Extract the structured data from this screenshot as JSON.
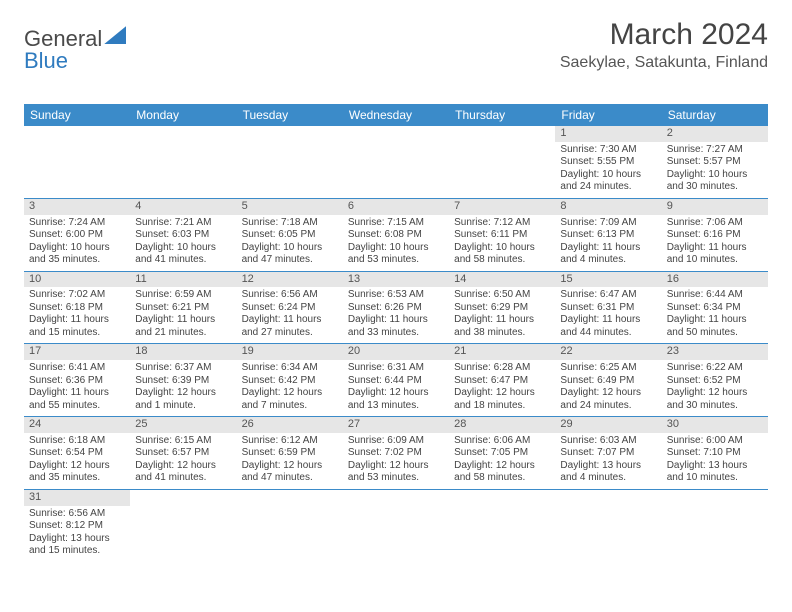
{
  "logo": {
    "part1": "General",
    "part2": "Blue"
  },
  "title": "March 2024",
  "location": "Saekylae, Satakunta, Finland",
  "weekdays": [
    "Sunday",
    "Monday",
    "Tuesday",
    "Wednesday",
    "Thursday",
    "Friday",
    "Saturday"
  ],
  "colors": {
    "header_bg": "#3b8bc9",
    "header_text": "#ffffff",
    "daynum_bg": "#e6e6e6",
    "border": "#3b8bc9",
    "text": "#444444",
    "logo_blue": "#2f7bbf"
  },
  "weeks": [
    [
      {
        "n": "",
        "lines": []
      },
      {
        "n": "",
        "lines": []
      },
      {
        "n": "",
        "lines": []
      },
      {
        "n": "",
        "lines": []
      },
      {
        "n": "",
        "lines": []
      },
      {
        "n": "1",
        "lines": [
          "Sunrise: 7:30 AM",
          "Sunset: 5:55 PM",
          "Daylight: 10 hours",
          "and 24 minutes."
        ]
      },
      {
        "n": "2",
        "lines": [
          "Sunrise: 7:27 AM",
          "Sunset: 5:57 PM",
          "Daylight: 10 hours",
          "and 30 minutes."
        ]
      }
    ],
    [
      {
        "n": "3",
        "lines": [
          "Sunrise: 7:24 AM",
          "Sunset: 6:00 PM",
          "Daylight: 10 hours",
          "and 35 minutes."
        ]
      },
      {
        "n": "4",
        "lines": [
          "Sunrise: 7:21 AM",
          "Sunset: 6:03 PM",
          "Daylight: 10 hours",
          "and 41 minutes."
        ]
      },
      {
        "n": "5",
        "lines": [
          "Sunrise: 7:18 AM",
          "Sunset: 6:05 PM",
          "Daylight: 10 hours",
          "and 47 minutes."
        ]
      },
      {
        "n": "6",
        "lines": [
          "Sunrise: 7:15 AM",
          "Sunset: 6:08 PM",
          "Daylight: 10 hours",
          "and 53 minutes."
        ]
      },
      {
        "n": "7",
        "lines": [
          "Sunrise: 7:12 AM",
          "Sunset: 6:11 PM",
          "Daylight: 10 hours",
          "and 58 minutes."
        ]
      },
      {
        "n": "8",
        "lines": [
          "Sunrise: 7:09 AM",
          "Sunset: 6:13 PM",
          "Daylight: 11 hours",
          "and 4 minutes."
        ]
      },
      {
        "n": "9",
        "lines": [
          "Sunrise: 7:06 AM",
          "Sunset: 6:16 PM",
          "Daylight: 11 hours",
          "and 10 minutes."
        ]
      }
    ],
    [
      {
        "n": "10",
        "lines": [
          "Sunrise: 7:02 AM",
          "Sunset: 6:18 PM",
          "Daylight: 11 hours",
          "and 15 minutes."
        ]
      },
      {
        "n": "11",
        "lines": [
          "Sunrise: 6:59 AM",
          "Sunset: 6:21 PM",
          "Daylight: 11 hours",
          "and 21 minutes."
        ]
      },
      {
        "n": "12",
        "lines": [
          "Sunrise: 6:56 AM",
          "Sunset: 6:24 PM",
          "Daylight: 11 hours",
          "and 27 minutes."
        ]
      },
      {
        "n": "13",
        "lines": [
          "Sunrise: 6:53 AM",
          "Sunset: 6:26 PM",
          "Daylight: 11 hours",
          "and 33 minutes."
        ]
      },
      {
        "n": "14",
        "lines": [
          "Sunrise: 6:50 AM",
          "Sunset: 6:29 PM",
          "Daylight: 11 hours",
          "and 38 minutes."
        ]
      },
      {
        "n": "15",
        "lines": [
          "Sunrise: 6:47 AM",
          "Sunset: 6:31 PM",
          "Daylight: 11 hours",
          "and 44 minutes."
        ]
      },
      {
        "n": "16",
        "lines": [
          "Sunrise: 6:44 AM",
          "Sunset: 6:34 PM",
          "Daylight: 11 hours",
          "and 50 minutes."
        ]
      }
    ],
    [
      {
        "n": "17",
        "lines": [
          "Sunrise: 6:41 AM",
          "Sunset: 6:36 PM",
          "Daylight: 11 hours",
          "and 55 minutes."
        ]
      },
      {
        "n": "18",
        "lines": [
          "Sunrise: 6:37 AM",
          "Sunset: 6:39 PM",
          "Daylight: 12 hours",
          "and 1 minute."
        ]
      },
      {
        "n": "19",
        "lines": [
          "Sunrise: 6:34 AM",
          "Sunset: 6:42 PM",
          "Daylight: 12 hours",
          "and 7 minutes."
        ]
      },
      {
        "n": "20",
        "lines": [
          "Sunrise: 6:31 AM",
          "Sunset: 6:44 PM",
          "Daylight: 12 hours",
          "and 13 minutes."
        ]
      },
      {
        "n": "21",
        "lines": [
          "Sunrise: 6:28 AM",
          "Sunset: 6:47 PM",
          "Daylight: 12 hours",
          "and 18 minutes."
        ]
      },
      {
        "n": "22",
        "lines": [
          "Sunrise: 6:25 AM",
          "Sunset: 6:49 PM",
          "Daylight: 12 hours",
          "and 24 minutes."
        ]
      },
      {
        "n": "23",
        "lines": [
          "Sunrise: 6:22 AM",
          "Sunset: 6:52 PM",
          "Daylight: 12 hours",
          "and 30 minutes."
        ]
      }
    ],
    [
      {
        "n": "24",
        "lines": [
          "Sunrise: 6:18 AM",
          "Sunset: 6:54 PM",
          "Daylight: 12 hours",
          "and 35 minutes."
        ]
      },
      {
        "n": "25",
        "lines": [
          "Sunrise: 6:15 AM",
          "Sunset: 6:57 PM",
          "Daylight: 12 hours",
          "and 41 minutes."
        ]
      },
      {
        "n": "26",
        "lines": [
          "Sunrise: 6:12 AM",
          "Sunset: 6:59 PM",
          "Daylight: 12 hours",
          "and 47 minutes."
        ]
      },
      {
        "n": "27",
        "lines": [
          "Sunrise: 6:09 AM",
          "Sunset: 7:02 PM",
          "Daylight: 12 hours",
          "and 53 minutes."
        ]
      },
      {
        "n": "28",
        "lines": [
          "Sunrise: 6:06 AM",
          "Sunset: 7:05 PM",
          "Daylight: 12 hours",
          "and 58 minutes."
        ]
      },
      {
        "n": "29",
        "lines": [
          "Sunrise: 6:03 AM",
          "Sunset: 7:07 PM",
          "Daylight: 13 hours",
          "and 4 minutes."
        ]
      },
      {
        "n": "30",
        "lines": [
          "Sunrise: 6:00 AM",
          "Sunset: 7:10 PM",
          "Daylight: 13 hours",
          "and 10 minutes."
        ]
      }
    ],
    [
      {
        "n": "31",
        "lines": [
          "Sunrise: 6:56 AM",
          "Sunset: 8:12 PM",
          "Daylight: 13 hours",
          "and 15 minutes."
        ]
      },
      {
        "n": "",
        "lines": []
      },
      {
        "n": "",
        "lines": []
      },
      {
        "n": "",
        "lines": []
      },
      {
        "n": "",
        "lines": []
      },
      {
        "n": "",
        "lines": []
      },
      {
        "n": "",
        "lines": []
      }
    ]
  ]
}
